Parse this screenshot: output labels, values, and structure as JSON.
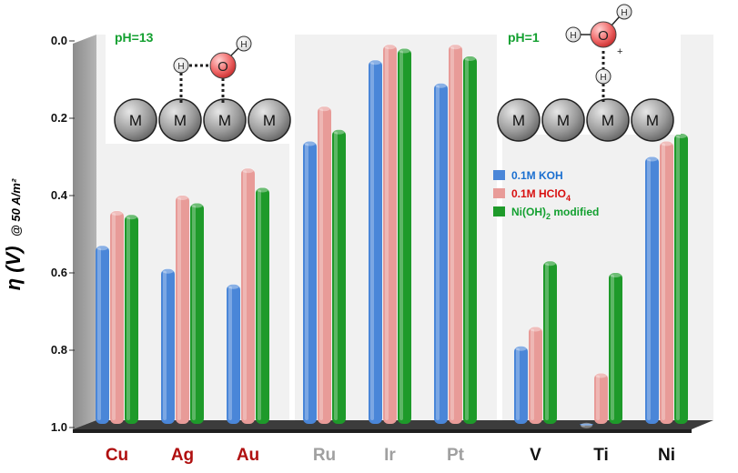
{
  "chart_data": {
    "type": "bar",
    "title": "",
    "xlabel": "",
    "ylabel": "η (V)",
    "ylabel_suffix": "@ 50 A/m²",
    "ylim": [
      0.0,
      1.0
    ],
    "y_axis_inverted": true,
    "yticks": [
      "0.0",
      "0.2",
      "0.4",
      "0.6",
      "0.8",
      "1.0"
    ],
    "grid": false,
    "legend_position": "right-middle",
    "groups": [
      {
        "name": "Cu/Ag/Au",
        "label_color": "#b01010",
        "categories": [
          "Cu",
          "Ag",
          "Au"
        ]
      },
      {
        "name": "Ru/Ir/Pt",
        "label_color": "#a0a0a0",
        "categories": [
          "Ru",
          "Ir",
          "Pt"
        ]
      },
      {
        "name": "V/Ti/Ni",
        "label_color": "#111111",
        "categories": [
          "V",
          "Ti",
          "Ni"
        ]
      }
    ],
    "categories": [
      "Cu",
      "Ag",
      "Au",
      "Ru",
      "Ir",
      "Pt",
      "V",
      "Ti",
      "Ni"
    ],
    "series": [
      {
        "name": "0.1M KOH",
        "color": "#4a86d8",
        "label_color": "#1a6fd0",
        "values": [
          0.53,
          0.59,
          0.63,
          0.26,
          0.05,
          0.11,
          0.79,
          0.99,
          0.3
        ]
      },
      {
        "name": "0.1M HClO4",
        "color": "#e89b98",
        "label_color": "#d81010",
        "values": [
          0.44,
          0.4,
          0.33,
          0.17,
          0.01,
          0.01,
          0.74,
          0.86,
          0.26
        ]
      },
      {
        "name": "Ni(OH)2 modified",
        "color": "#1e9a2a",
        "label_color": "#13a030",
        "values": [
          0.45,
          0.42,
          0.38,
          0.23,
          0.02,
          0.04,
          0.57,
          0.6,
          0.24
        ]
      }
    ],
    "legend_labels": [
      {
        "main": "0.1M KOH",
        "sub": "",
        "tail": ""
      },
      {
        "main": "0.1M HClO",
        "sub": "4",
        "tail": ""
      },
      {
        "main": "Ni(OH)",
        "sub": "2",
        "tail": " modified"
      }
    ],
    "annotations": {
      "left_inset": {
        "ph_label": "pH=13",
        "ph_color": "#13a030",
        "atoms": [
          "M",
          "M",
          "M",
          "M"
        ],
        "h_label": "H",
        "o_label": "O",
        "h_label_2": "H"
      },
      "right_inset": {
        "ph_label": "pH=1",
        "ph_color": "#13a030",
        "atoms": [
          "M",
          "M",
          "M",
          "M"
        ],
        "h_left": "H",
        "o_label": "O",
        "h_top": "H",
        "h_bottom": "H",
        "charge": "+"
      }
    }
  }
}
